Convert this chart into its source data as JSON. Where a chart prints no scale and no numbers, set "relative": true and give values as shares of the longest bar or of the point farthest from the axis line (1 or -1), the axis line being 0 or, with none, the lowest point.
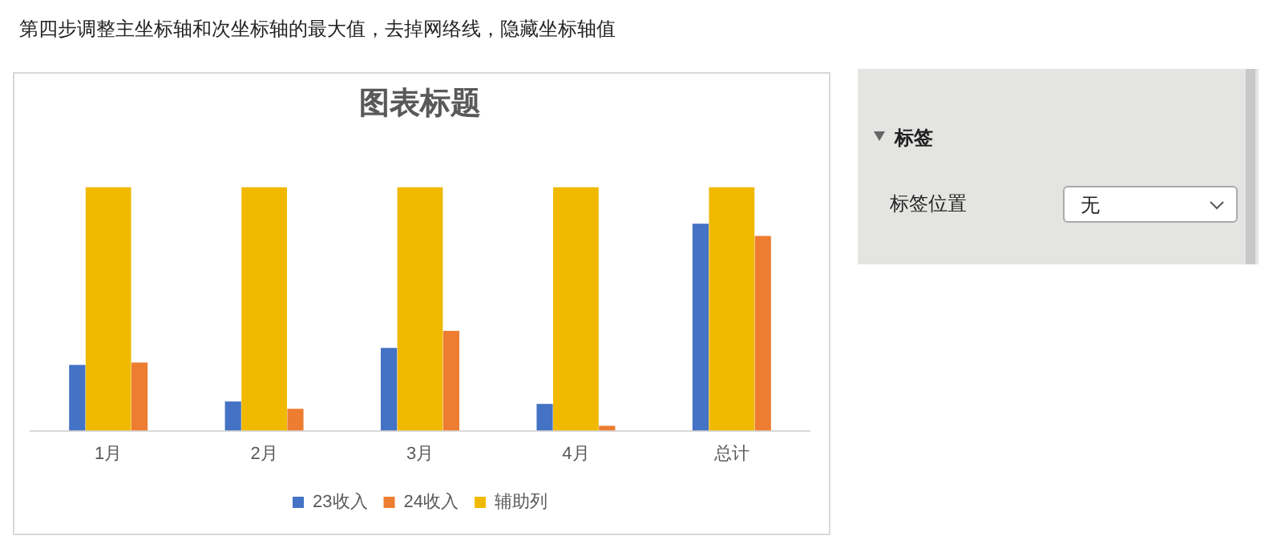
{
  "chart_data": {
    "type": "bar",
    "title": "图表标题",
    "relative": true,
    "categories": [
      "1月",
      "2月",
      "3月",
      "4月",
      "总计"
    ],
    "series": [
      {
        "name": "23收入",
        "color": "#4472c4",
        "values": [
          0.27,
          0.12,
          0.34,
          0.11,
          0.85
        ]
      },
      {
        "name": "24收入",
        "color": "#ed7d31",
        "values": [
          0.28,
          0.09,
          0.41,
          0.02,
          0.8
        ]
      },
      {
        "name": "辅助列",
        "color": "#f0b900",
        "values": [
          1,
          1,
          1,
          1,
          1
        ]
      }
    ],
    "legend": "bottom",
    "grid": false,
    "annotations": [
      "第四步调整主坐标轴和次坐标轴的最大值，去掉网络线，隐藏坐标轴值",
      "标签",
      "标签位置",
      "无"
    ]
  }
}
